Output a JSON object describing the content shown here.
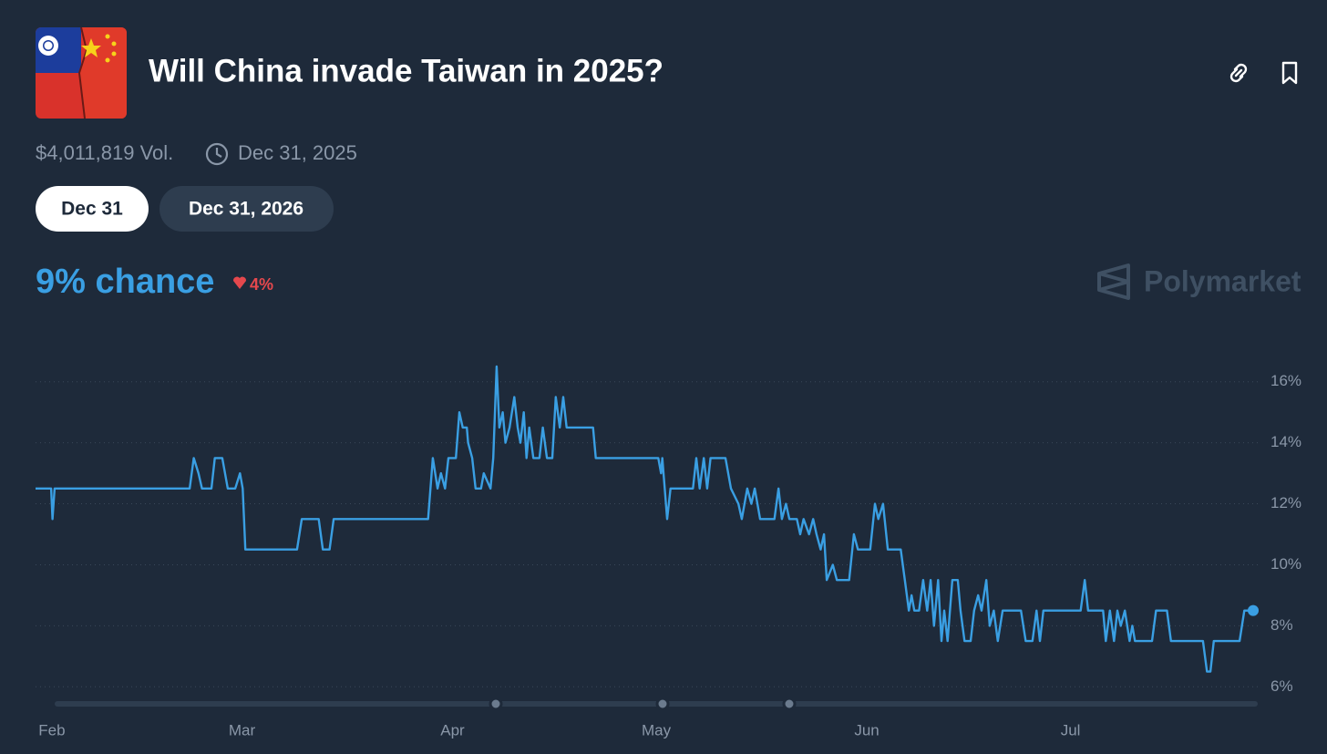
{
  "header": {
    "title": "Will China invade Taiwan in 2025?",
    "volume": "$4,011,819 Vol.",
    "end_date": "Dec 31, 2025"
  },
  "tabs": [
    "Dec 31",
    "Dec 31, 2026"
  ],
  "summary": {
    "chance": "9% chance",
    "change": "4%"
  },
  "brand": "Polymarket",
  "chart_data": {
    "type": "line",
    "color": "#3a9fe3",
    "grid": true,
    "xlim": [
      -2.4,
      176.9
    ],
    "ylim": [
      5.8,
      16.5
    ],
    "xticks": [
      {
        "value": 0,
        "label": "Feb"
      },
      {
        "value": 28,
        "label": "Mar"
      },
      {
        "value": 59,
        "label": "Apr"
      },
      {
        "value": 89,
        "label": "May"
      },
      {
        "value": 120,
        "label": "Jun"
      },
      {
        "value": 150,
        "label": "Jul"
      }
    ],
    "yticks": [
      {
        "value": 6,
        "label": "6%"
      },
      {
        "value": 8,
        "label": "8%"
      },
      {
        "value": 10,
        "label": "10%"
      },
      {
        "value": 12,
        "label": "12%"
      },
      {
        "value": 14,
        "label": "14%"
      },
      {
        "value": 16,
        "label": "16%"
      }
    ],
    "x": [
      -2.4,
      -0.1,
      0.1,
      0.4,
      20.3,
      20.9,
      21.6,
      22.1,
      23.5,
      24.0,
      25.1,
      25.9,
      27.0,
      27.7,
      28.1,
      28.5,
      36.1,
      36.8,
      39.3,
      39.9,
      40.9,
      41.5,
      55.4,
      56.1,
      56.8,
      57.3,
      57.9,
      58.4,
      59.5,
      60.0,
      60.5,
      61.1,
      61.3,
      61.9,
      62.4,
      63.2,
      63.6,
      64.6,
      65.0,
      65.5,
      65.9,
      66.4,
      66.8,
      67.4,
      68.1,
      68.6,
      69.0,
      69.5,
      69.9,
      70.3,
      70.9,
      71.8,
      72.3,
      72.9,
      73.7,
      74.2,
      74.8,
      75.3,
      75.8,
      79.7,
      80.1,
      89.3,
      89.7,
      89.9,
      90.6,
      91.1,
      94.4,
      94.9,
      95.4,
      96.0,
      96.5,
      97.0,
      99.2,
      100.0,
      101.1,
      101.6,
      102.4,
      103.0,
      103.5,
      104.3,
      106.4,
      107.0,
      107.5,
      108.1,
      108.6,
      109.7,
      110.2,
      110.7,
      111.5,
      112.1,
      112.6,
      113.2,
      113.7,
      114.1,
      115.0,
      115.6,
      117.4,
      118.1,
      118.7,
      120.5,
      121.2,
      121.7,
      122.4,
      123.1,
      125.0,
      125.6,
      126.2,
      126.6,
      127.0,
      127.7,
      128.3,
      128.9,
      129.4,
      129.9,
      130.5,
      131.0,
      131.4,
      131.9,
      132.6,
      133.4,
      133.8,
      134.4,
      135.3,
      135.8,
      136.4,
      136.9,
      137.6,
      138.1,
      138.7,
      139.3,
      140.0,
      142.7,
      143.4,
      144.4,
      145.0,
      145.5,
      146.0,
      151.5,
      152.1,
      152.6,
      154.8,
      155.2,
      155.8,
      156.4,
      156.9,
      157.4,
      158.0,
      158.7,
      159.1,
      159.5,
      162.0,
      162.6,
      164.2,
      164.8,
      169.5,
      170.1,
      170.6,
      171.1,
      174.9,
      175.6,
      176.9
    ],
    "values": [
      12.5,
      12.5,
      11.5,
      12.5,
      12.5,
      13.5,
      13,
      12.5,
      12.5,
      13.5,
      13.5,
      12.5,
      12.5,
      13,
      12.5,
      10.5,
      10.5,
      11.5,
      11.5,
      10.5,
      10.5,
      11.5,
      11.5,
      13.5,
      12.5,
      13,
      12.5,
      13.5,
      13.5,
      15,
      14.5,
      14.5,
      14,
      13.5,
      12.5,
      12.5,
      13,
      12.5,
      13.5,
      16.5,
      14.5,
      15,
      14,
      14.5,
      15.5,
      14.5,
      14,
      15,
      13.5,
      14.5,
      13.5,
      13.5,
      14.5,
      13.5,
      13.5,
      15.5,
      14.5,
      15.5,
      14.5,
      14.5,
      13.5,
      13.5,
      13,
      13.5,
      11.5,
      12.5,
      12.5,
      13.5,
      12.5,
      13.5,
      12.5,
      13.5,
      13.5,
      12.5,
      12,
      11.5,
      12.5,
      12,
      12.5,
      11.5,
      11.5,
      12.5,
      11.5,
      12,
      11.5,
      11.5,
      11,
      11.5,
      11,
      11.5,
      11,
      10.5,
      11,
      9.5,
      10,
      9.5,
      9.5,
      11,
      10.5,
      10.5,
      12,
      11.5,
      12,
      10.5,
      10.5,
      9.5,
      8.5,
      9,
      8.5,
      8.5,
      9.5,
      8.5,
      9.5,
      8,
      9.5,
      7.5,
      8.5,
      7.5,
      9.5,
      9.5,
      8.5,
      7.5,
      7.5,
      8.5,
      9,
      8.5,
      9.5,
      8,
      8.5,
      7.5,
      8.5,
      8.5,
      7.5,
      7.5,
      8.5,
      7.5,
      8.5,
      8.5,
      9.5,
      8.5,
      8.5,
      7.5,
      8.5,
      7.5,
      8.5,
      8,
      8.5,
      7.5,
      8,
      7.5,
      7.5,
      8.5,
      8.5,
      7.5,
      7.5,
      6.5,
      6.5,
      7.5,
      7.5,
      8.5,
      8.5
    ]
  }
}
